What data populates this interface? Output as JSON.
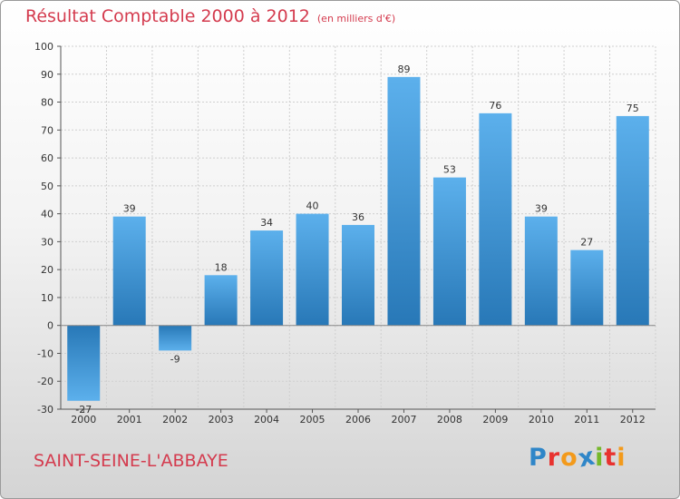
{
  "title": {
    "main": "Résultat Comptable 2000 à 2012",
    "unit": "(en milliers d'€)"
  },
  "commune": "SAINT-SEINE-L'ABBAYE",
  "logo": {
    "text": "Proxiti",
    "letters": [
      {
        "ch": "P",
        "color": "#2f86c8"
      },
      {
        "ch": "r",
        "color": "#e8322f"
      },
      {
        "ch": "o",
        "color": "#f39a1b"
      },
      {
        "ch": "x",
        "color": "#2f86c8"
      },
      {
        "ch": "i",
        "color": "#76b82a"
      },
      {
        "ch": "t",
        "color": "#e8322f"
      },
      {
        "ch": "i",
        "color": "#f39a1b"
      }
    ]
  },
  "colors": {
    "title": "#d43b4e",
    "bar_light": "#5cb0ec",
    "bar_dark": "#2878b7",
    "axis": "#555555",
    "grid": "#cfcfcf"
  },
  "chart_data": {
    "type": "bar",
    "title": "Résultat Comptable 2000 à 2012",
    "subtitle": "(en milliers d'€)",
    "xlabel": "",
    "ylabel": "",
    "categories": [
      "2000",
      "2001",
      "2002",
      "2003",
      "2004",
      "2005",
      "2006",
      "2007",
      "2008",
      "2009",
      "2010",
      "2011",
      "2012"
    ],
    "values": [
      -27,
      39,
      -9,
      18,
      34,
      40,
      36,
      89,
      53,
      76,
      39,
      27,
      75
    ],
    "ylim": [
      -30,
      100
    ],
    "yticks": [
      -30,
      -20,
      -10,
      0,
      10,
      20,
      30,
      40,
      50,
      60,
      70,
      80,
      90,
      100
    ],
    "grid": true
  }
}
